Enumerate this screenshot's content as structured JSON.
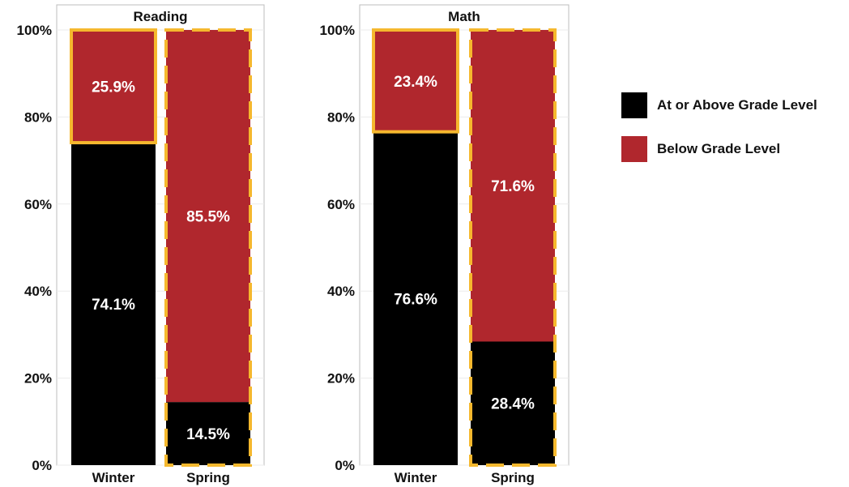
{
  "colors": {
    "above": "#000000",
    "below": "#b0272d",
    "highlight": "#f5b82e",
    "axis_text": "#111111",
    "label_text": "#ffffff",
    "panel_border": "#bdbdbd",
    "grid": "#ebebeb"
  },
  "legend": {
    "position": "right",
    "items": [
      {
        "label": "At or Above Grade Level",
        "color": "#000000"
      },
      {
        "label": "Below Grade Level",
        "color": "#b0272d"
      }
    ]
  },
  "chart_data": [
    {
      "type": "bar",
      "stacked": true,
      "title": "Reading",
      "categories": [
        "Winter",
        "Spring"
      ],
      "series": [
        {
          "name": "At or Above Grade Level",
          "values": [
            74.1,
            14.5
          ],
          "labels": [
            "74.1%",
            "14.5%"
          ]
        },
        {
          "name": "Below Grade Level",
          "values": [
            25.9,
            85.5
          ],
          "labels": [
            "25.9%",
            "85.5%"
          ]
        }
      ],
      "highlight": [
        "solid",
        "dashed"
      ],
      "ylim": [
        0,
        100
      ],
      "yticks": [
        "0%",
        "20%",
        "40%",
        "60%",
        "80%",
        "100%"
      ]
    },
    {
      "type": "bar",
      "stacked": true,
      "title": "Math",
      "categories": [
        "Winter",
        "Spring"
      ],
      "series": [
        {
          "name": "At or Above Grade Level",
          "values": [
            76.6,
            28.4
          ],
          "labels": [
            "76.6%",
            "28.4%"
          ]
        },
        {
          "name": "Below Grade Level",
          "values": [
            23.4,
            71.6
          ],
          "labels": [
            "23.4%",
            "71.6%"
          ]
        }
      ],
      "highlight": [
        "solid",
        "dashed"
      ],
      "ylim": [
        0,
        100
      ],
      "yticks": [
        "0%",
        "20%",
        "40%",
        "60%",
        "80%",
        "100%"
      ]
    }
  ]
}
